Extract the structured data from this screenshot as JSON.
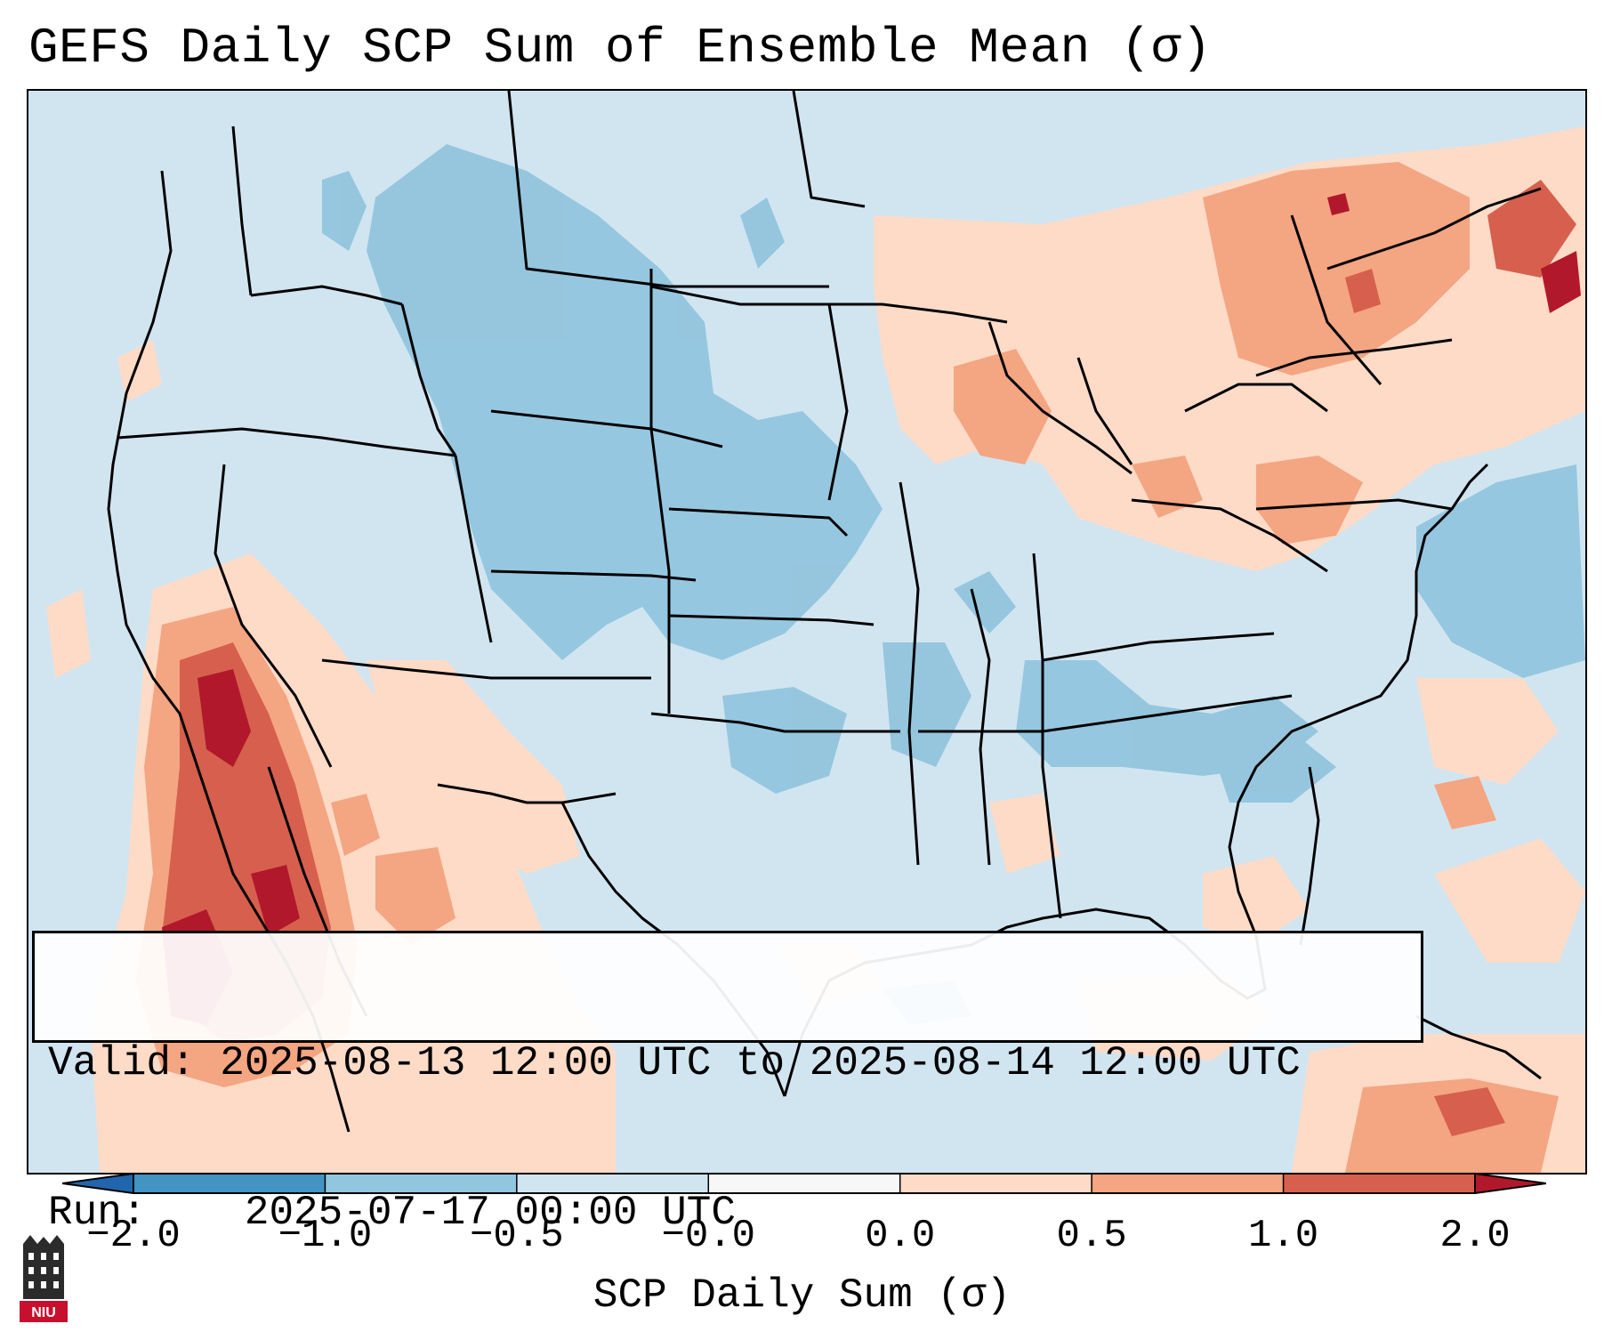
{
  "title": "GEFS Daily SCP Sum of Ensemble Mean (σ)",
  "info": {
    "valid_label": "Valid:",
    "valid_value": "2025-08-13 12:00 UTC to 2025-08-14 12:00 UTC",
    "run_label": "Run:",
    "run_value": "2025-07-17 00:00 UTC"
  },
  "colorbar": {
    "label": "SCP Daily Sum (σ)",
    "ticks": [
      "−2.0",
      "−1.0",
      "−0.5",
      "−0.0",
      "0.0",
      "0.5",
      "1.0",
      "2.0"
    ],
    "bins": [
      {
        "from": "-2.0",
        "to": "-1.0",
        "color": "#4393c3"
      },
      {
        "from": "-1.0",
        "to": "-0.5",
        "color": "#92c5de"
      },
      {
        "from": "-0.5",
        "to": "-0.0",
        "color": "#d1e5f0"
      },
      {
        "from": "-0.0",
        "to": "0.0",
        "color": "#f7f7f7"
      },
      {
        "from": "0.0",
        "to": "0.5",
        "color": "#fddbc7"
      },
      {
        "from": "0.5",
        "to": "1.0",
        "color": "#f4a582"
      },
      {
        "from": "1.0",
        "to": "2.0",
        "color": "#d6604d"
      }
    ],
    "under_color": "#2166ac",
    "over_color": "#b2182b"
  },
  "logo": {
    "text": "NIU",
    "icon": "university-tower-icon"
  },
  "colors": {
    "background": "#d1e5f0",
    "border": "#000000"
  }
}
